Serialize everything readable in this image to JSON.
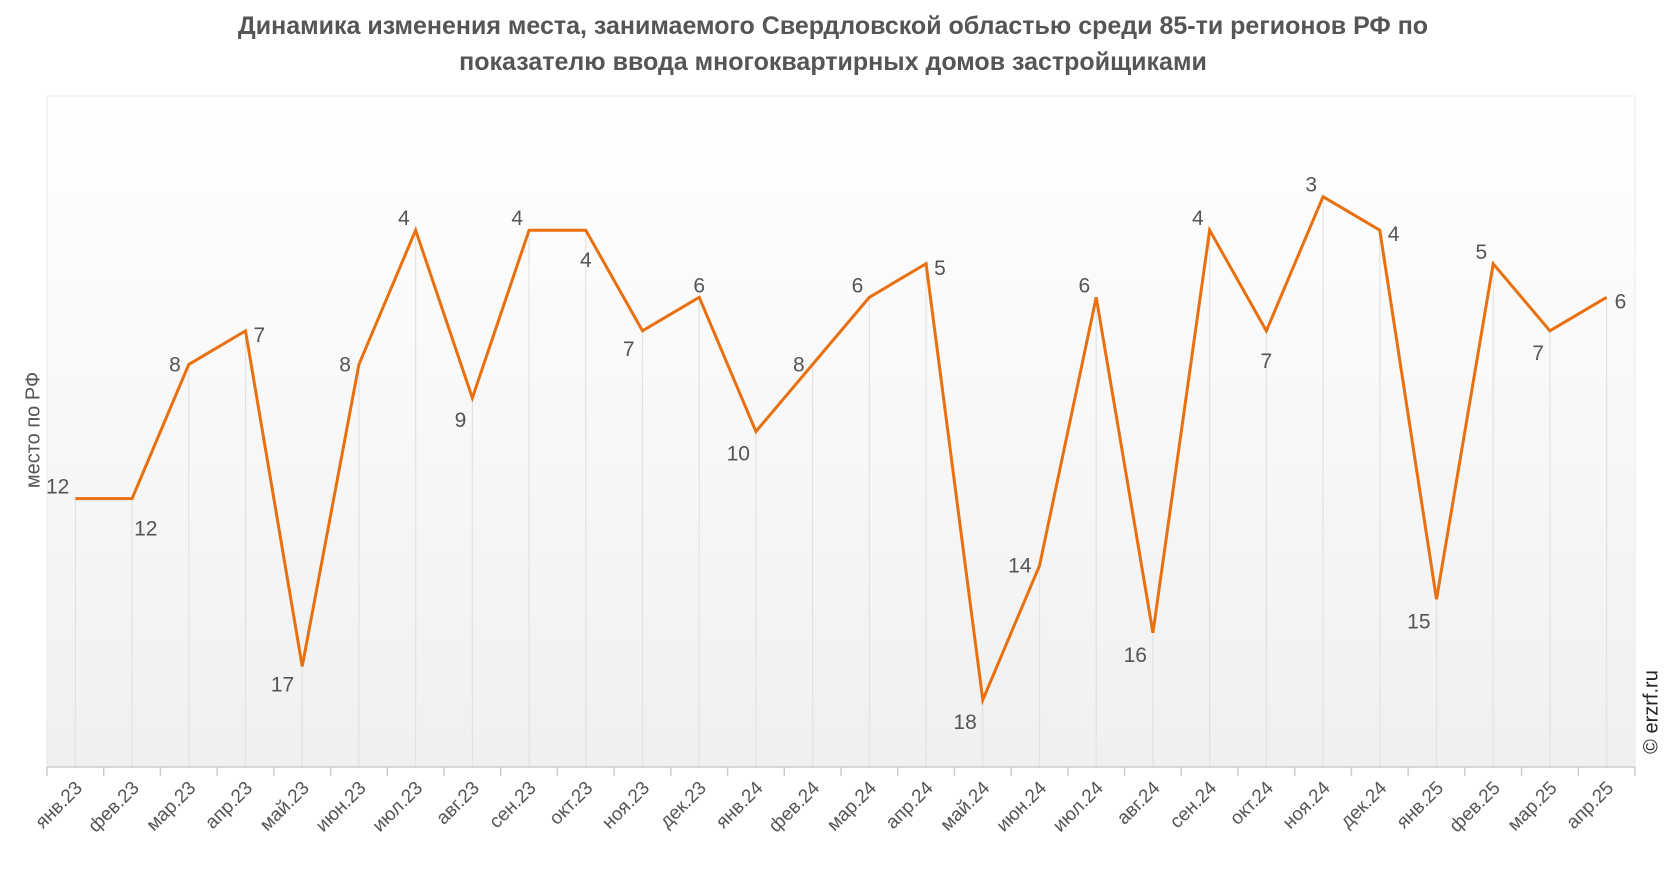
{
  "chart_data": {
    "type": "line",
    "title_line1": "Динамика изменения места, занимаемого Свердловской областью среди 85-ти регионов РФ по",
    "title_line2": "показателю ввода многоквартирных домов застройщиками",
    "ylabel": "место по РФ",
    "xlabel": "",
    "y_reversed": true,
    "ylim": [
      0,
      20
    ],
    "grid": false,
    "categories": [
      "янв.23",
      "фев.23",
      "мар.23",
      "апр.23",
      "май.23",
      "июн.23",
      "июл.23",
      "авг.23",
      "сен.23",
      "окт.23",
      "ноя.23",
      "дек.23",
      "янв.24",
      "фев.24",
      "мар.24",
      "апр.24",
      "май.24",
      "июн.24",
      "июл.24",
      "авг.24",
      "сен.24",
      "окт.24",
      "ноя.24",
      "дек.24",
      "янв.25",
      "фев.25",
      "мар.25",
      "апр.25"
    ],
    "series": [
      {
        "name": "место по РФ",
        "color": "#e8700f",
        "values": [
          12,
          12,
          8,
          7,
          17,
          8,
          4,
          9,
          4,
          4,
          7,
          6,
          10,
          8,
          6,
          5,
          18,
          14,
          6,
          16,
          4,
          7,
          3,
          4,
          15,
          5,
          7,
          6
        ]
      }
    ],
    "watermark": "© erzrf.ru"
  }
}
